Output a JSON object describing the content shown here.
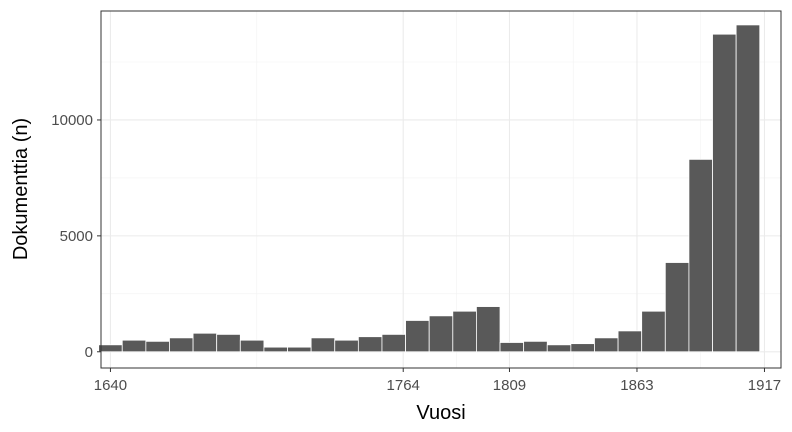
{
  "chart_data": {
    "type": "bar",
    "xlabel": "Vuosi",
    "ylabel": "Dokumenttia (n)",
    "x_ticks": [
      1640,
      1764,
      1809,
      1863,
      1917
    ],
    "x_tick_labels": [
      "1640",
      "1764",
      "1809",
      "1863",
      "1917"
    ],
    "y_ticks": [
      0,
      5000,
      10000
    ],
    "y_tick_labels": [
      "0",
      "5000",
      "10000"
    ],
    "xlim": [
      1636,
      1924
    ],
    "ylim": [
      -700,
      14700
    ],
    "bin_width": 10,
    "x": [
      1640,
      1650,
      1660,
      1670,
      1680,
      1690,
      1700,
      1710,
      1720,
      1730,
      1740,
      1750,
      1760,
      1770,
      1780,
      1790,
      1800,
      1810,
      1820,
      1830,
      1840,
      1850,
      1860,
      1870,
      1880,
      1890,
      1900,
      1910
    ],
    "values": [
      300,
      500,
      450,
      600,
      800,
      750,
      500,
      200,
      200,
      600,
      500,
      650,
      750,
      1350,
      1550,
      1750,
      1950,
      400,
      450,
      300,
      350,
      600,
      900,
      1750,
      3850,
      8300,
      13700,
      14100
    ],
    "bar_color": "#595959",
    "grid": true,
    "legend": "none"
  }
}
